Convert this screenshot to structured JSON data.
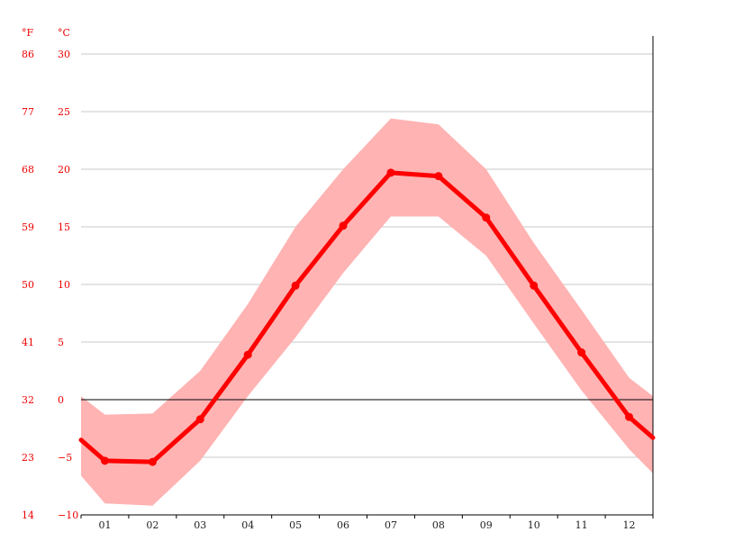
{
  "chart_data": {
    "type": "line",
    "x": [
      "01",
      "02",
      "03",
      "04",
      "05",
      "06",
      "07",
      "08",
      "09",
      "10",
      "11",
      "12"
    ],
    "y_axis_left_label": "°F",
    "y_axis_right_label": "°C",
    "ylim": [
      -10,
      30
    ],
    "celsius_ticks": [
      "30",
      "25",
      "20",
      "15",
      "10",
      "5",
      "0",
      "−5",
      "−10"
    ],
    "fahrenheit_ticks": [
      "86",
      "77",
      "68",
      "59",
      "50",
      "41",
      "32",
      "23",
      "14"
    ],
    "series": [
      {
        "values": [
          -5.3,
          -5.4,
          -1.7,
          3.9,
          9.9,
          15.1,
          19.7,
          19.4,
          15.8,
          9.9,
          4.1,
          -1.5
        ],
        "color": "#ff0000"
      }
    ],
    "band": {
      "upper": [
        -1.3,
        -1.2,
        2.5,
        8.3,
        15.0,
        20.0,
        24.4,
        23.9,
        20.0,
        13.6,
        7.8,
        1.9
      ],
      "lower": [
        -9.0,
        -9.2,
        -5.3,
        0.3,
        5.4,
        11.0,
        15.9,
        15.9,
        12.5,
        6.6,
        0.8,
        -4.3
      ],
      "color": "#ffb3b3"
    },
    "edge_values": {
      "start": -3.5,
      "end": -3.3,
      "upper_start": 0.3,
      "upper_end": 0.3,
      "lower_start": -6.6,
      "lower_end": -6.4
    },
    "grid": true,
    "zero_line": true
  }
}
